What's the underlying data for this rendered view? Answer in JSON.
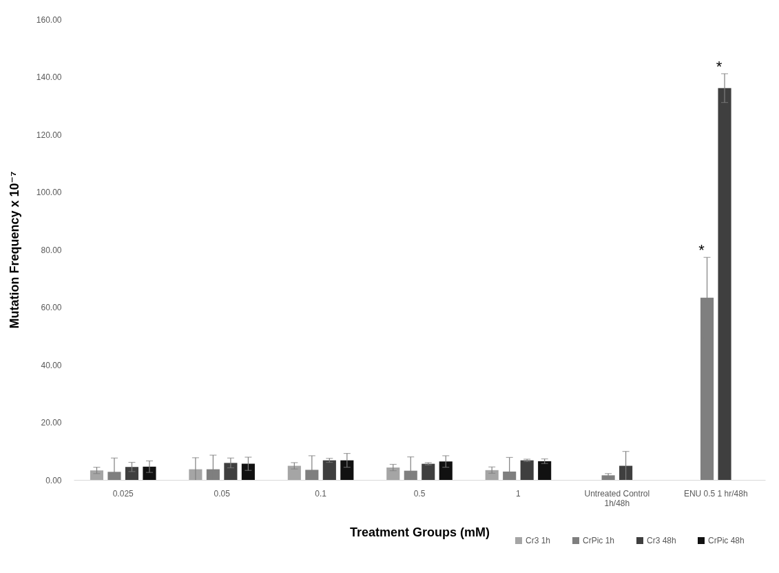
{
  "chart_data": {
    "type": "bar",
    "xlabel": "Treatment Groups (mM)",
    "ylabel": "Mutation Frequency x 10⁻⁷",
    "categories": [
      "0.025",
      "0.05",
      "0.1",
      "0.5",
      "1",
      "Untreated Control 1h/48h",
      "ENU 0.5 1 hr/48h"
    ],
    "series": [
      {
        "name": "Cr3 1h",
        "color": "#a5a5a5",
        "values": [
          3.3,
          3.7,
          4.9,
          4.3,
          3.4,
          null,
          null
        ],
        "errors": [
          1.1,
          4.0,
          1.1,
          1.1,
          1.1,
          null,
          null
        ]
      },
      {
        "name": "CrPic 1h",
        "color": "#7f7f7f",
        "values": [
          2.8,
          3.7,
          3.5,
          3.2,
          2.9,
          1.6,
          63.3
        ],
        "errors": [
          4.8,
          4.9,
          4.9,
          4.8,
          4.9,
          0.6,
          14
        ]
      },
      {
        "name": "Cr3 48h",
        "color": "#3f3f3f",
        "values": [
          4.5,
          5.9,
          6.8,
          5.6,
          6.8,
          4.9,
          136.1
        ],
        "errors": [
          1.6,
          1.7,
          0.7,
          0.4,
          0.4,
          5.0,
          5
        ]
      },
      {
        "name": "CrPic 48h",
        "color": "#111111",
        "values": [
          4.6,
          5.6,
          6.8,
          6.4,
          6.5,
          null,
          null
        ],
        "errors": [
          2.0,
          2.3,
          2.4,
          2.0,
          0.8,
          null,
          null
        ]
      }
    ],
    "ylim": [
      0,
      160
    ],
    "yticks": [
      {
        "value": 0,
        "label": "0.00"
      },
      {
        "value": 20,
        "label": "20.00"
      },
      {
        "value": 40,
        "label": "40.00"
      },
      {
        "value": 60,
        "label": "60.00"
      },
      {
        "value": 80,
        "label": "80.00"
      },
      {
        "value": 100,
        "label": "100.00"
      },
      {
        "value": 120,
        "label": "120.00"
      },
      {
        "value": 140,
        "label": "140.00"
      },
      {
        "value": 160,
        "label": "160.00"
      }
    ],
    "annotations": [
      "*",
      "*"
    ],
    "grid": false,
    "legend": "bottom right"
  }
}
